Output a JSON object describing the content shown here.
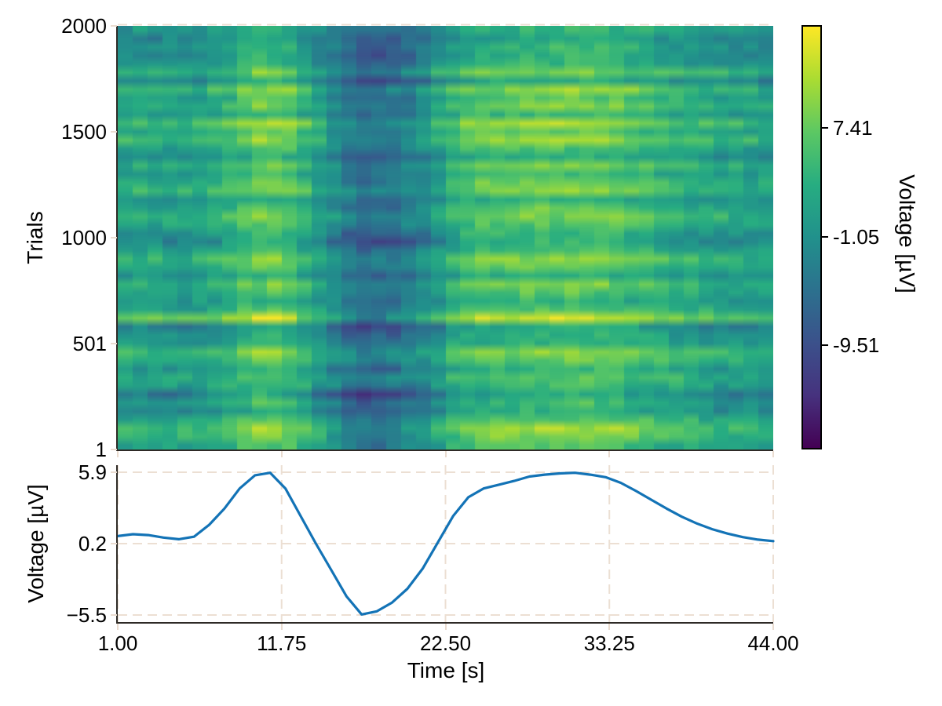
{
  "figure": {
    "background": "#ffffff",
    "spine_color": "#2e2a26",
    "grid_color": "#ecdfd3",
    "tick_mark_color": "#eadcd0",
    "text_color": "#000000"
  },
  "chart_data": [
    {
      "type": "heatmap",
      "name": "erp-image",
      "xlabel": "Time [s]",
      "ylabel": "Trials",
      "x_range": [
        1,
        44
      ],
      "y_range": [
        1,
        2000
      ],
      "n_trials": 2000,
      "n_time_bins": 44,
      "n_row_bins": 50,
      "y_ticks": [
        {
          "trial": 2000,
          "label": "2000"
        },
        {
          "trial": 1500,
          "label": "1500"
        },
        {
          "trial": 1000,
          "label": "1000"
        },
        {
          "trial": 501,
          "label": "501"
        },
        {
          "trial": 1,
          "label": "1"
        }
      ],
      "x_tick_values": [
        1.0,
        11.75,
        22.5,
        33.25,
        44.0
      ],
      "colormap": "viridis",
      "colormap_stops": [
        [
          0.0,
          "#440154"
        ],
        [
          0.125,
          "#46327e"
        ],
        [
          0.25,
          "#3b518b"
        ],
        [
          0.375,
          "#2c718e"
        ],
        [
          0.5,
          "#21918c"
        ],
        [
          0.625,
          "#27ad81"
        ],
        [
          0.75,
          "#5cc863"
        ],
        [
          0.875,
          "#aadc32"
        ],
        [
          1.0,
          "#fde725"
        ]
      ],
      "vmin": -17.6,
      "vmax": 15.4,
      "colorbar": {
        "label": "Voltage [µV]",
        "ticks": [
          {
            "v": 7.41,
            "label": "7.41"
          },
          {
            "v": -1.05,
            "label": "-1.05"
          },
          {
            "v": -9.51,
            "label": "-9.51"
          }
        ]
      },
      "row_gain": [
        1.0,
        1.2,
        1.3,
        1.1,
        1.0,
        1.2,
        1.5,
        1.0,
        0.9,
        1.1,
        1.0,
        1.2,
        0.8,
        1.1,
        1.3,
        1.5,
        1.0,
        0.9,
        1.1,
        1.2,
        1.0,
        1.1,
        1.3,
        1.0,
        1.4,
        1.2,
        1.0,
        1.1,
        1.2,
        0.9,
        1.1,
        1.3,
        1.0,
        1.2,
        1.1,
        1.0,
        1.3,
        1.1,
        1.4,
        1.0,
        1.2,
        1.1,
        1.3,
        1.2,
        1.1,
        1.0,
        1.2,
        1.1,
        1.0,
        0.9
      ],
      "row_offset": [
        0.5,
        2.5,
        4.0,
        1.0,
        -2.5,
        -1.0,
        -5.5,
        0.0,
        1.5,
        -1.5,
        2.0,
        3.0,
        -0.5,
        -2.0,
        -4.5,
        5.5,
        1.0,
        -1.0,
        0.5,
        2.0,
        -2.0,
        1.5,
        3.0,
        0.0,
        -3.5,
        -2.0,
        1.0,
        2.5,
        0.5,
        -1.5,
        3.0,
        1.5,
        -0.5,
        2.0,
        -2.5,
        0.5,
        3.5,
        1.0,
        4.0,
        -1.0,
        2.0,
        0.0,
        3.0,
        -4.0,
        2.5,
        -1.5,
        -3.0,
        -2.0,
        -3.5,
        -1.0
      ],
      "noise_amp": 1.9,
      "noise_seed": 7
    },
    {
      "type": "line",
      "name": "average-erp",
      "xlabel": "Time [s]",
      "ylabel": "Voltage [µV]",
      "line_color": "#1373b6",
      "line_width": 3.2,
      "grid": true,
      "xlim": [
        1,
        44
      ],
      "ylim": [
        -6.06,
        6.46
      ],
      "x": [
        1,
        2,
        3,
        4,
        5,
        6,
        7,
        8,
        9,
        10,
        11,
        12,
        13,
        14,
        15,
        16,
        17,
        18,
        19,
        20,
        21,
        22,
        23,
        24,
        25,
        26,
        27,
        28,
        29,
        30,
        31,
        32,
        33,
        34,
        35,
        36,
        37,
        38,
        39,
        40,
        41,
        42,
        43,
        44
      ],
      "y": [
        0.8,
        0.95,
        0.88,
        0.68,
        0.55,
        0.75,
        1.7,
        3.0,
        4.6,
        5.65,
        5.85,
        4.6,
        2.4,
        0.2,
        -1.9,
        -4.0,
        -5.45,
        -5.2,
        -4.5,
        -3.4,
        -1.8,
        0.3,
        2.4,
        3.9,
        4.6,
        4.9,
        5.2,
        5.55,
        5.7,
        5.8,
        5.85,
        5.7,
        5.5,
        5.05,
        4.4,
        3.7,
        3.0,
        2.35,
        1.8,
        1.35,
        1.0,
        0.72,
        0.52,
        0.4
      ],
      "x_ticks": [
        {
          "t": 1.0,
          "label": "1.00"
        },
        {
          "t": 11.75,
          "label": "11.75"
        },
        {
          "t": 22.5,
          "label": "22.50"
        },
        {
          "t": 33.25,
          "label": "33.25"
        },
        {
          "t": 44.0,
          "label": "44.00"
        }
      ],
      "y_ticks": [
        {
          "v": 5.9,
          "label": "5.9"
        },
        {
          "v": 0.2,
          "label": "0.2"
        },
        {
          "v": -5.5,
          "label": "−5.5"
        }
      ]
    }
  ]
}
